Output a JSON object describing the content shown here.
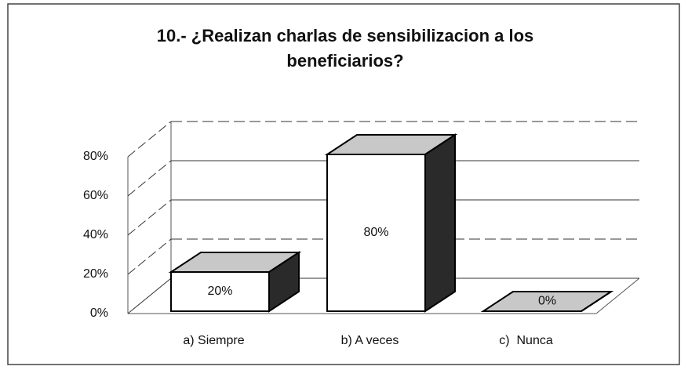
{
  "chart_data": {
    "type": "bar3d",
    "title": "10.- ¿Realizan charlas de sensibilizacion a los beneficiarios?",
    "categories": [
      "a) Siempre",
      "b) A veces",
      "c)  Nunca"
    ],
    "values": [
      20,
      80,
      0
    ],
    "value_labels": [
      "20%",
      "80%",
      "0%"
    ],
    "ylim": [
      0,
      80
    ],
    "yticks": [
      {
        "value": 0,
        "label": "0%"
      },
      {
        "value": 20,
        "label": "20%"
      },
      {
        "value": 40,
        "label": "40%"
      },
      {
        "value": 60,
        "label": "60%"
      },
      {
        "value": 80,
        "label": "80%"
      }
    ],
    "grid": true,
    "colors": {
      "front": "#ffffff",
      "top": "#c8c8c8",
      "side": "#2a2a2a"
    }
  }
}
